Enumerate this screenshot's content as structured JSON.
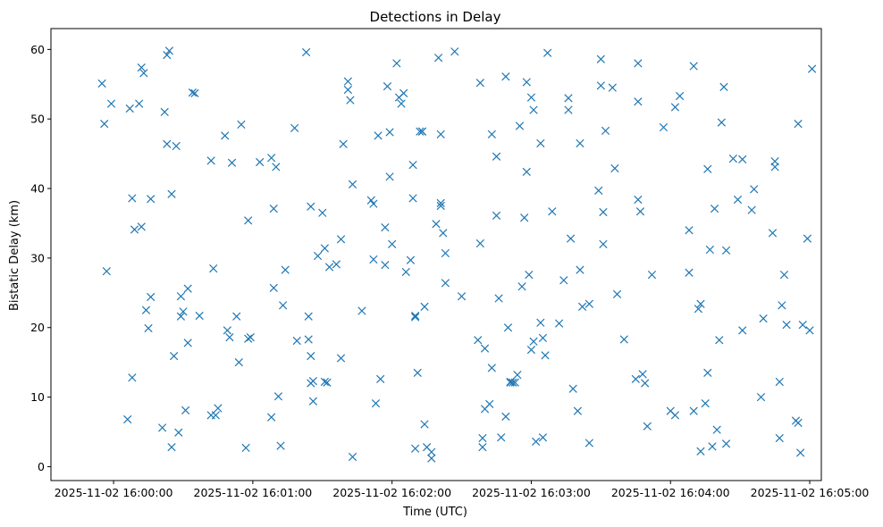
{
  "chart_data": {
    "type": "scatter",
    "title": "Detections in Delay",
    "xlabel": "Time (UTC)",
    "ylabel": "Bistatic Delay (km)",
    "xlim": [
      "2025-11-02 15:59:33",
      "2025-11-02 16:05:05"
    ],
    "ylim": [
      -2,
      63
    ],
    "x_ticks": [
      "2025-11-02 16:00:00",
      "2025-11-02 16:01:00",
      "2025-11-02 16:02:00",
      "2025-11-02 16:03:00",
      "2025-11-02 16:04:00",
      "2025-11-02 16:05:00"
    ],
    "y_ticks": [
      0,
      10,
      20,
      30,
      40,
      50,
      60
    ],
    "grid": false,
    "marker": "x",
    "color": "#1f77b4",
    "series": [
      {
        "x": [
          "2025-11-02 15:59:55",
          "2025-11-02 15:59:56",
          "2025-11-02 15:59:57",
          "2025-11-02 15:59:59",
          "2025-11-02 16:00:06",
          "2025-11-02 16:00:07",
          "2025-11-02 16:00:08",
          "2025-11-02 16:00:08",
          "2025-11-02 16:00:09",
          "2025-11-02 16:00:11",
          "2025-11-02 16:00:12",
          "2025-11-02 16:00:12",
          "2025-11-02 16:00:13",
          "2025-11-02 16:00:14",
          "2025-11-02 16:00:15",
          "2025-11-02 16:00:16",
          "2025-11-02 16:00:16",
          "2025-11-02 16:00:21",
          "2025-11-02 16:00:22",
          "2025-11-02 16:00:23",
          "2025-11-02 16:00:23",
          "2025-11-02 16:00:24",
          "2025-11-02 16:00:25",
          "2025-11-02 16:00:25",
          "2025-11-02 16:00:26",
          "2025-11-02 16:00:27",
          "2025-11-02 16:00:28",
          "2025-11-02 16:00:29",
          "2025-11-02 16:00:29",
          "2025-11-02 16:00:30",
          "2025-11-02 16:00:31",
          "2025-11-02 16:00:32",
          "2025-11-02 16:00:32",
          "2025-11-02 16:00:34",
          "2025-11-02 16:00:35",
          "2025-11-02 16:00:37",
          "2025-11-02 16:00:42",
          "2025-11-02 16:00:42",
          "2025-11-02 16:00:43",
          "2025-11-02 16:00:44",
          "2025-11-02 16:00:45",
          "2025-11-02 16:00:48",
          "2025-11-02 16:00:49",
          "2025-11-02 16:00:50",
          "2025-11-02 16:00:51",
          "2025-11-02 16:00:53",
          "2025-11-02 16:00:54",
          "2025-11-02 16:00:55",
          "2025-11-02 16:00:57",
          "2025-11-02 16:00:58",
          "2025-11-02 16:00:58",
          "2025-11-02 16:00:59",
          "2025-11-02 16:01:03",
          "2025-11-02 16:01:08",
          "2025-11-02 16:01:08",
          "2025-11-02 16:01:09",
          "2025-11-02 16:01:09",
          "2025-11-02 16:01:10",
          "2025-11-02 16:01:11",
          "2025-11-02 16:01:12",
          "2025-11-02 16:01:13",
          "2025-11-02 16:01:14",
          "2025-11-02 16:01:18",
          "2025-11-02 16:01:19",
          "2025-11-02 16:01:23",
          "2025-11-02 16:01:24",
          "2025-11-02 16:01:24",
          "2025-11-02 16:01:25",
          "2025-11-02 16:01:25",
          "2025-11-02 16:01:25",
          "2025-11-02 16:01:26",
          "2025-11-02 16:01:26",
          "2025-11-02 16:01:28",
          "2025-11-02 16:01:30",
          "2025-11-02 16:01:31",
          "2025-11-02 16:01:31",
          "2025-11-02 16:01:32",
          "2025-11-02 16:01:33",
          "2025-11-02 16:01:36",
          "2025-11-02 16:01:38",
          "2025-11-02 16:01:38",
          "2025-11-02 16:01:39",
          "2025-11-02 16:01:41",
          "2025-11-02 16:01:41",
          "2025-11-02 16:01:42",
          "2025-11-02 16:01:43",
          "2025-11-02 16:01:43",
          "2025-11-02 16:01:47",
          "2025-11-02 16:01:51",
          "2025-11-02 16:01:52",
          "2025-11-02 16:01:52",
          "2025-11-02 16:01:53",
          "2025-11-02 16:01:54",
          "2025-11-02 16:01:55",
          "2025-11-02 16:01:57",
          "2025-11-02 16:01:57",
          "2025-11-02 16:01:58",
          "2025-11-02 16:01:59",
          "2025-11-02 16:01:59",
          "2025-11-02 16:02:00",
          "2025-11-02 16:02:02",
          "2025-11-02 16:02:03",
          "2025-11-02 16:02:04",
          "2025-11-02 16:02:05",
          "2025-11-02 16:02:06",
          "2025-11-02 16:02:08",
          "2025-11-02 16:02:09",
          "2025-11-02 16:02:09",
          "2025-11-02 16:02:10",
          "2025-11-02 16:02:10",
          "2025-11-02 16:02:10",
          "2025-11-02 16:02:11",
          "2025-11-02 16:02:12",
          "2025-11-02 16:02:13",
          "2025-11-02 16:02:13",
          "2025-11-02 16:02:14",
          "2025-11-02 16:02:14",
          "2025-11-02 16:02:15",
          "2025-11-02 16:02:17",
          "2025-11-02 16:02:17",
          "2025-11-02 16:02:19",
          "2025-11-02 16:02:20",
          "2025-11-02 16:02:21",
          "2025-11-02 16:02:21",
          "2025-11-02 16:02:21",
          "2025-11-02 16:02:22",
          "2025-11-02 16:02:23",
          "2025-11-02 16:02:23",
          "2025-11-02 16:02:27",
          "2025-11-02 16:02:30",
          "2025-11-02 16:02:37",
          "2025-11-02 16:02:38",
          "2025-11-02 16:02:38",
          "2025-11-02 16:02:39",
          "2025-11-02 16:02:39",
          "2025-11-02 16:02:40",
          "2025-11-02 16:02:40",
          "2025-11-02 16:02:42",
          "2025-11-02 16:02:43",
          "2025-11-02 16:02:43",
          "2025-11-02 16:02:45",
          "2025-11-02 16:02:45",
          "2025-11-02 16:02:46",
          "2025-11-02 16:02:47",
          "2025-11-02 16:02:49",
          "2025-11-02 16:02:49",
          "2025-11-02 16:02:50",
          "2025-11-02 16:02:51",
          "2025-11-02 16:02:51",
          "2025-11-02 16:02:52",
          "2025-11-02 16:02:53",
          "2025-11-02 16:02:54",
          "2025-11-02 16:02:55",
          "2025-11-02 16:02:56",
          "2025-11-02 16:02:57",
          "2025-11-02 16:02:58",
          "2025-11-02 16:02:58",
          "2025-11-02 16:02:59",
          "2025-11-02 16:03:00",
          "2025-11-02 16:03:00",
          "2025-11-02 16:03:01",
          "2025-11-02 16:03:01",
          "2025-11-02 16:03:02",
          "2025-11-02 16:03:04",
          "2025-11-02 16:03:04",
          "2025-11-02 16:03:05",
          "2025-11-02 16:03:05",
          "2025-11-02 16:03:06",
          "2025-11-02 16:03:07",
          "2025-11-02 16:03:09",
          "2025-11-02 16:03:12",
          "2025-11-02 16:03:14",
          "2025-11-02 16:03:16",
          "2025-11-02 16:03:16",
          "2025-11-02 16:03:17",
          "2025-11-02 16:03:18",
          "2025-11-02 16:03:20",
          "2025-11-02 16:03:21",
          "2025-11-02 16:03:21",
          "2025-11-02 16:03:22",
          "2025-11-02 16:03:25",
          "2025-11-02 16:03:25",
          "2025-11-02 16:03:29",
          "2025-11-02 16:03:30",
          "2025-11-02 16:03:30",
          "2025-11-02 16:03:31",
          "2025-11-02 16:03:31",
          "2025-11-02 16:03:32",
          "2025-11-02 16:03:35",
          "2025-11-02 16:03:36",
          "2025-11-02 16:03:37",
          "2025-11-02 16:03:40",
          "2025-11-02 16:03:45",
          "2025-11-02 16:03:46",
          "2025-11-02 16:03:46",
          "2025-11-02 16:03:46",
          "2025-11-02 16:03:47",
          "2025-11-02 16:03:48",
          "2025-11-02 16:03:49",
          "2025-11-02 16:03:50",
          "2025-11-02 16:03:52",
          "2025-11-02 16:03:57",
          "2025-11-02 16:04:00",
          "2025-11-02 16:04:02",
          "2025-11-02 16:04:02",
          "2025-11-02 16:04:04",
          "2025-11-02 16:04:08",
          "2025-11-02 16:04:08",
          "2025-11-02 16:04:10",
          "2025-11-02 16:04:10",
          "2025-11-02 16:04:12",
          "2025-11-02 16:04:13",
          "2025-11-02 16:04:13",
          "2025-11-02 16:04:15",
          "2025-11-02 16:04:16",
          "2025-11-02 16:04:16",
          "2025-11-02 16:04:17",
          "2025-11-02 16:04:18",
          "2025-11-02 16:04:19",
          "2025-11-02 16:04:20",
          "2025-11-02 16:04:21",
          "2025-11-02 16:04:22",
          "2025-11-02 16:04:23",
          "2025-11-02 16:04:24",
          "2025-11-02 16:04:24",
          "2025-11-02 16:04:27",
          "2025-11-02 16:04:29",
          "2025-11-02 16:04:31",
          "2025-11-02 16:04:31",
          "2025-11-02 16:04:35",
          "2025-11-02 16:04:36",
          "2025-11-02 16:04:39",
          "2025-11-02 16:04:40",
          "2025-11-02 16:04:44",
          "2025-11-02 16:04:45",
          "2025-11-02 16:04:45",
          "2025-11-02 16:04:47",
          "2025-11-02 16:04:47",
          "2025-11-02 16:04:48",
          "2025-11-02 16:04:49",
          "2025-11-02 16:04:50",
          "2025-11-02 16:04:54",
          "2025-11-02 16:04:55",
          "2025-11-02 16:04:55",
          "2025-11-02 16:04:56",
          "2025-11-02 16:04:57",
          "2025-11-02 16:04:59",
          "2025-11-02 16:05:00",
          "2025-11-02 16:05:01"
        ],
        "y": [
          55.1,
          49.3,
          28.1,
          52.2,
          6.8,
          51.5,
          12.8,
          38.6,
          34.1,
          52.2,
          34.5,
          57.4,
          56.6,
          22.5,
          19.9,
          24.4,
          38.5,
          5.6,
          51.0,
          46.4,
          59.2,
          59.8,
          39.2,
          2.8,
          15.9,
          46.1,
          4.9,
          24.5,
          21.6,
          22.3,
          8.1,
          17.8,
          25.6,
          53.8,
          53.7,
          21.7,
          44.0,
          7.4,
          28.5,
          7.4,
          8.4,
          47.6,
          19.6,
          18.6,
          43.7,
          21.6,
          15.0,
          49.2,
          2.7,
          35.4,
          18.4,
          18.6,
          43.8,
          44.4,
          7.1,
          25.7,
          37.1,
          43.1,
          10.1,
          3.0,
          23.2,
          28.3,
          48.7,
          18.1,
          59.6,
          18.3,
          21.6,
          15.9,
          12.0,
          37.4,
          12.3,
          9.4,
          30.3,
          36.5,
          31.4,
          12.2,
          12.1,
          28.7,
          29.1,
          32.7,
          15.6,
          46.4,
          55.4,
          54.2,
          52.7,
          1.4,
          40.6,
          22.4,
          38.3,
          37.8,
          29.8,
          9.1,
          47.6,
          12.6,
          34.4,
          29.0,
          54.7,
          41.7,
          48.1,
          32.0,
          58.0,
          53.1,
          52.2,
          53.7,
          28.0,
          29.7,
          43.4,
          38.6,
          21.5,
          21.7,
          2.6,
          13.5,
          48.2,
          48.2,
          48.2,
          23.0,
          6.1,
          2.8,
          1.2,
          2.1,
          34.9,
          58.8,
          37.9,
          37.5,
          47.8,
          33.6,
          30.7,
          26.4,
          59.7,
          24.5,
          18.2,
          55.2,
          32.1,
          4.1,
          2.8,
          17.0,
          8.3,
          9.0,
          14.2,
          47.8,
          44.6,
          36.1,
          24.2,
          4.2,
          56.1,
          7.2,
          20.0,
          12.1,
          12.2,
          12.1,
          12.1,
          13.2,
          49.0,
          25.9,
          35.8,
          42.4,
          55.3,
          27.6,
          53.1,
          16.8,
          51.3,
          18.0,
          3.6,
          20.7,
          46.5,
          18.5,
          4.2,
          16.0,
          59.5,
          36.7,
          20.6,
          26.8,
          53.0,
          51.3,
          32.8,
          11.2,
          8.0,
          28.3,
          46.5,
          23.0,
          23.4,
          3.4,
          39.7,
          58.6,
          54.8,
          32.0,
          36.6,
          48.3,
          54.5,
          42.9,
          24.8,
          18.3,
          12.6,
          58.0,
          38.4,
          52.5,
          36.7,
          13.3,
          12.0,
          5.8,
          27.6,
          48.8,
          8.0,
          51.7,
          7.4,
          53.3,
          27.9,
          34.0,
          8.0,
          57.6,
          22.7,
          23.4,
          2.2,
          9.1,
          42.8,
          13.5,
          31.2,
          2.9,
          37.1,
          5.3,
          18.2,
          49.5,
          54.6,
          3.3,
          31.1,
          44.3,
          38.4,
          19.6,
          44.2,
          36.9,
          39.9,
          10.0,
          21.3,
          33.6,
          43.1,
          43.9,
          4.1,
          12.2,
          23.2,
          27.6,
          20.4,
          6.6,
          6.3,
          49.3,
          2.0,
          20.4,
          32.8,
          19.6,
          57.2
        ]
      }
    ]
  }
}
